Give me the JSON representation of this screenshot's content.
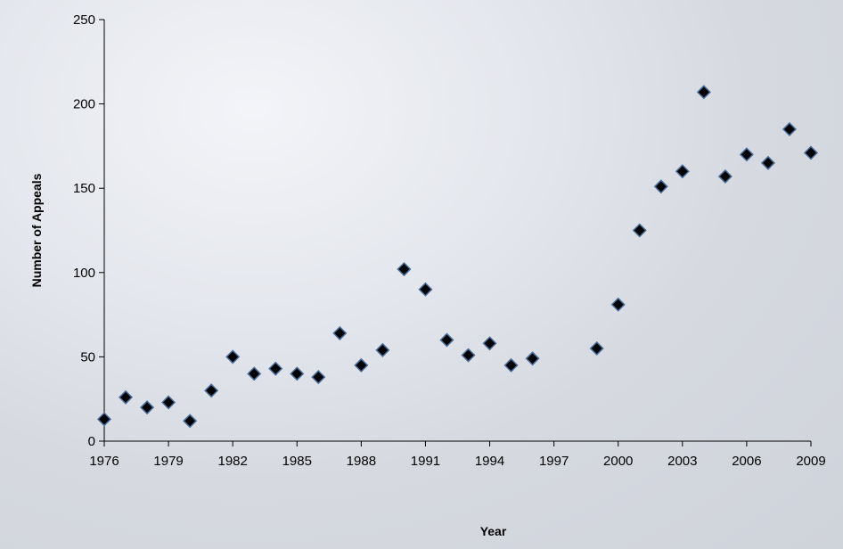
{
  "chart_data": {
    "type": "scatter",
    "title": "",
    "xlabel": "Year",
    "ylabel": "Number of Appeals",
    "xlim": [
      1976,
      2009
    ],
    "ylim": [
      0,
      250
    ],
    "x_ticks": [
      1976,
      1979,
      1982,
      1985,
      1988,
      1991,
      1994,
      1997,
      2000,
      2003,
      2006,
      2009
    ],
    "y_ticks": [
      0,
      50,
      100,
      150,
      200,
      250
    ],
    "grid": false,
    "legend": "none",
    "marker": "diamond",
    "colors": {
      "marker_fill": "#000000",
      "marker_edge": "#4a6f9c",
      "axis": "#000000"
    },
    "points": [
      {
        "x": 1976,
        "y": 13
      },
      {
        "x": 1977,
        "y": 26
      },
      {
        "x": 1978,
        "y": 20
      },
      {
        "x": 1979,
        "y": 23
      },
      {
        "x": 1980,
        "y": 12
      },
      {
        "x": 1981,
        "y": 30
      },
      {
        "x": 1982,
        "y": 50
      },
      {
        "x": 1983,
        "y": 40
      },
      {
        "x": 1984,
        "y": 43
      },
      {
        "x": 1985,
        "y": 40
      },
      {
        "x": 1986,
        "y": 38
      },
      {
        "x": 1987,
        "y": 64
      },
      {
        "x": 1988,
        "y": 45
      },
      {
        "x": 1989,
        "y": 54
      },
      {
        "x": 1990,
        "y": 102
      },
      {
        "x": 1991,
        "y": 90
      },
      {
        "x": 1992,
        "y": 60
      },
      {
        "x": 1993,
        "y": 51
      },
      {
        "x": 1994,
        "y": 58
      },
      {
        "x": 1995,
        "y": 45
      },
      {
        "x": 1996,
        "y": 49
      },
      {
        "x": 1999,
        "y": 55
      },
      {
        "x": 2000,
        "y": 81
      },
      {
        "x": 2001,
        "y": 125
      },
      {
        "x": 2002,
        "y": 151
      },
      {
        "x": 2003,
        "y": 160
      },
      {
        "x": 2004,
        "y": 207
      },
      {
        "x": 2005,
        "y": 157
      },
      {
        "x": 2006,
        "y": 170
      },
      {
        "x": 2007,
        "y": 165
      },
      {
        "x": 2008,
        "y": 185
      },
      {
        "x": 2009,
        "y": 171
      }
    ]
  }
}
